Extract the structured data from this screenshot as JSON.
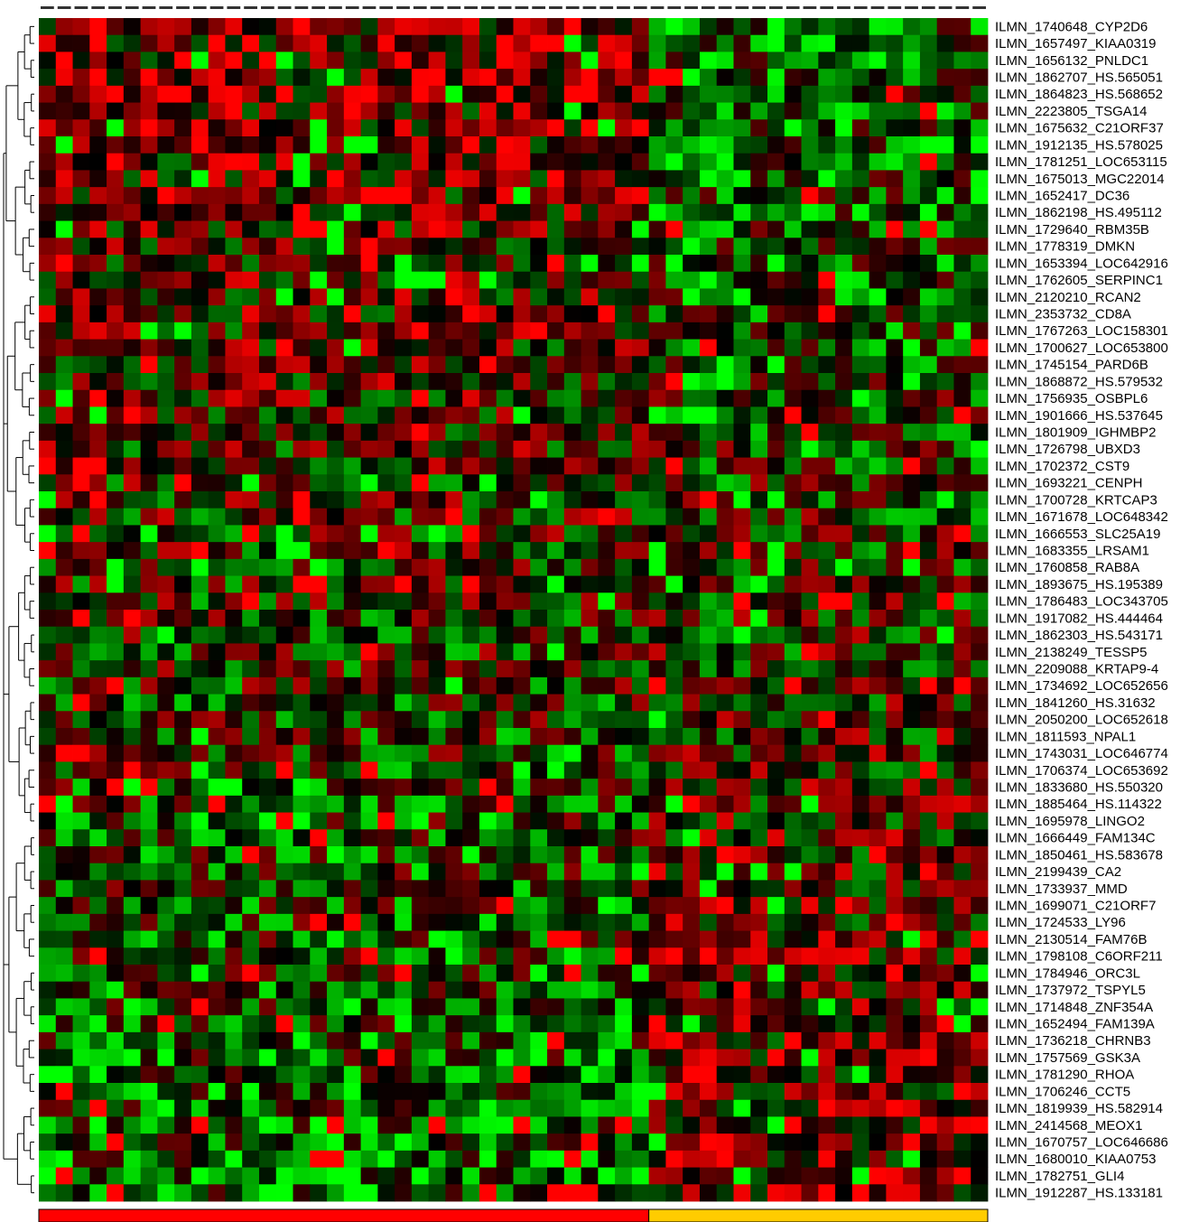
{
  "chart_data": {
    "type": "heatmap",
    "title": "",
    "xlabel": "",
    "ylabel": "",
    "value_range": [
      -1,
      1
    ],
    "colors": {
      "high": "#ff0000",
      "neutral": "#000000",
      "low": "#00ff00",
      "group_a": "#ff0000",
      "group_b": "#ffcc00"
    },
    "dendrogram": "rows-left",
    "column_labels_note": "column labels too small to read",
    "n_columns": 56,
    "group_split_column": 36,
    "rows": [
      "ILMN_1740648_CYP2D6",
      "ILMN_1657497_KIAA0319",
      "ILMN_1656132_PNLDC1",
      "ILMN_1862707_HS.565051",
      "ILMN_1864823_HS.568652",
      "ILMN_2223805_TSGA14",
      "ILMN_1675632_C21ORF37",
      "ILMN_1912135_HS.578025",
      "ILMN_1781251_LOC653115",
      "ILMN_1675013_MGC22014",
      "ILMN_1652417_DC36",
      "ILMN_1862198_HS.495112",
      "ILMN_1729640_RBM35B",
      "ILMN_1778319_DMKN",
      "ILMN_1653394_LOC642916",
      "ILMN_1762605_SERPINC1",
      "ILMN_2120210_RCAN2",
      "ILMN_2353732_CD8A",
      "ILMN_1767263_LOC158301",
      "ILMN_1700627_LOC653800",
      "ILMN_1745154_PARD6B",
      "ILMN_1868872_HS.579532",
      "ILMN_1756935_OSBPL6",
      "ILMN_1901666_HS.537645",
      "ILMN_1801909_IGHMBP2",
      "ILMN_1726798_UBXD3",
      "ILMN_1702372_CST9",
      "ILMN_1693221_CENPH",
      "ILMN_1700728_KRTCAP3",
      "ILMN_1671678_LOC648342",
      "ILMN_1666553_SLC25A19",
      "ILMN_1683355_LRSAM1",
      "ILMN_1760858_RAB8A",
      "ILMN_1893675_HS.195389",
      "ILMN_1786483_LOC343705",
      "ILMN_1917082_HS.444464",
      "ILMN_1862303_HS.543171",
      "ILMN_2138249_TESSP5",
      "ILMN_2209088_KRTAP9-4",
      "ILMN_1734692_LOC652656",
      "ILMN_1841260_HS.31632",
      "ILMN_2050200_LOC652618",
      "ILMN_1811593_NPAL1",
      "ILMN_1743031_LOC646774",
      "ILMN_1706374_LOC653692",
      "ILMN_1833680_HS.550320",
      "ILMN_1885464_HS.114322",
      "ILMN_1695978_LINGO2",
      "ILMN_1666449_FAM134C",
      "ILMN_1850461_HS.583678",
      "ILMN_2199439_CA2",
      "ILMN_1733937_MMD",
      "ILMN_1699071_C21ORF7",
      "ILMN_1724533_LY96",
      "ILMN_2130514_FAM76B",
      "ILMN_1798108_C6ORF211",
      "ILMN_1784946_ORC3L",
      "ILMN_1737972_TSPYL5",
      "ILMN_1714848_ZNF354A",
      "ILMN_1652494_FAM139A",
      "ILMN_1736218_CHRNB3",
      "ILMN_1757569_GSK3A",
      "ILMN_1781290_RHOA",
      "ILMN_1706246_CCT5",
      "ILMN_1819939_HS.582914",
      "ILMN_2414568_MEOX1",
      "ILMN_1670757_LOC646686",
      "ILMN_1680010_KIAA0753",
      "ILMN_1782751_GLI4",
      "ILMN_1912287_HS.133181"
    ]
  }
}
